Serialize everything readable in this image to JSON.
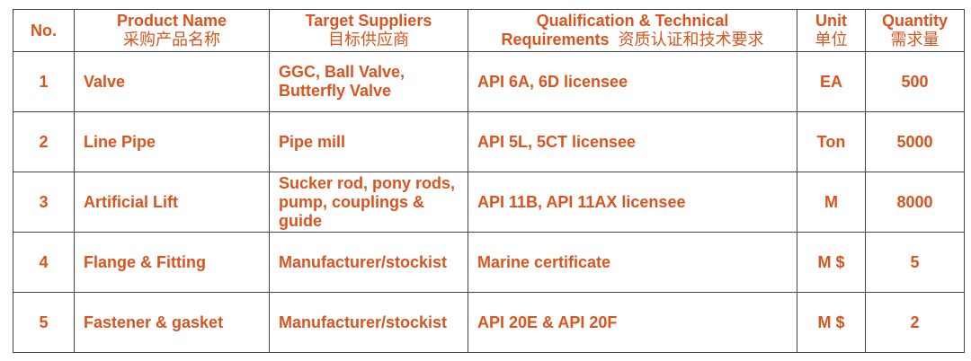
{
  "headers": {
    "no": "No.",
    "product_en": "Product Name",
    "product_cn": "采购产品名称",
    "suppliers_en": "Target Suppliers",
    "suppliers_cn": "目标供应商",
    "qual_en1": "Qualification & Technical",
    "qual_en2": "Requirements",
    "qual_cn": "资质认证和技术要求",
    "unit_en": "Unit",
    "unit_cn": "单位",
    "qty_en": "Quantity",
    "qty_cn": "需求量"
  },
  "rows": [
    {
      "no": "1",
      "product": "Valve",
      "suppliers": "GGC, Ball Valve, Butterfly Valve",
      "requirements": "API 6A, 6D licensee",
      "unit": "EA",
      "quantity": "500"
    },
    {
      "no": "2",
      "product": "Line Pipe",
      "suppliers": "Pipe mill",
      "requirements": "API 5L, 5CT licensee",
      "unit": "Ton",
      "quantity": "5000"
    },
    {
      "no": "3",
      "product": "Artificial Lift",
      "suppliers": "Sucker rod, pony rods, pump, couplings & guide",
      "requirements": "API 11B, API 11AX licensee",
      "unit": "M",
      "quantity": "8000"
    },
    {
      "no": "4",
      "product": "Flange & Fitting",
      "suppliers": "Manufacturer/stockist",
      "requirements": "Marine certificate",
      "unit": "M $",
      "quantity": "5"
    },
    {
      "no": "5",
      "product": "Fastener & gasket",
      "suppliers": "Manufacturer/stockist",
      "requirements": "API 20E & API 20F",
      "unit": "M $",
      "quantity": "2"
    }
  ],
  "colors": {
    "text": "#d9541e",
    "border": "#444444"
  }
}
